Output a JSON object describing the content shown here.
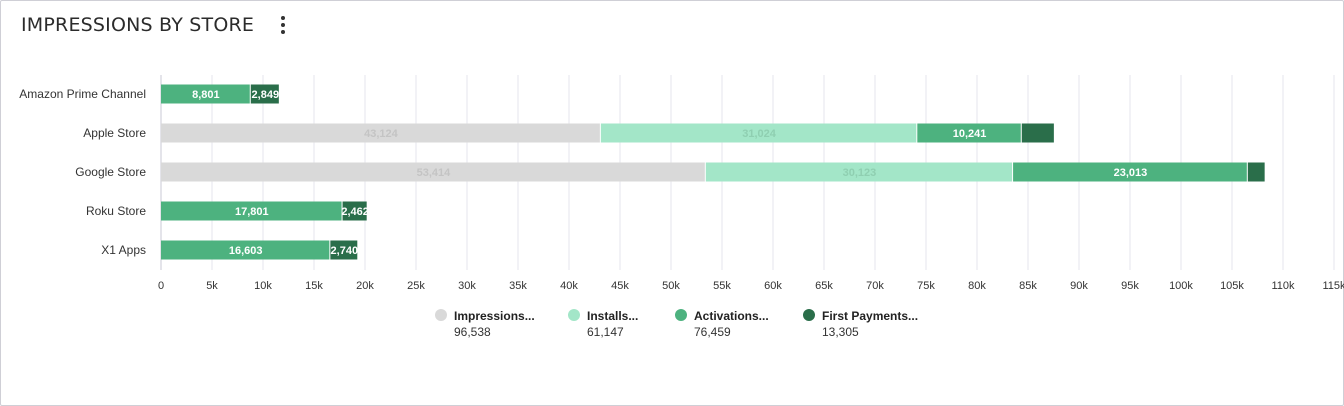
{
  "header": {
    "title": "IMPRESSIONS BY STORE",
    "menu_icon": "kebab-menu-icon"
  },
  "colors": {
    "impressions": "#d9d9d9",
    "installs": "#a3e6c8",
    "activations": "#4db27f",
    "first_payments": "#2a6e4a",
    "grid": "#e6e6ec",
    "axis_text": "#333333"
  },
  "chart_data": {
    "type": "bar",
    "orientation": "horizontal",
    "stacked": true,
    "title": "",
    "categories": [
      "Amazon Prime Channel",
      "Apple Store",
      "Google Store",
      "Roku Store",
      "X1 Apps"
    ],
    "series": [
      {
        "name": "Impressions...",
        "key": "impressions",
        "values": [
          0,
          43124,
          53414,
          0,
          0
        ],
        "labels": [
          "",
          "43,124",
          "53,414",
          "",
          ""
        ]
      },
      {
        "name": "Installs...",
        "key": "installs",
        "values": [
          0,
          31024,
          30123,
          0,
          0
        ],
        "labels": [
          "",
          "31,024",
          "30,123",
          "",
          ""
        ]
      },
      {
        "name": "Activations...",
        "key": "activations",
        "values": [
          8801,
          10241,
          23013,
          17801,
          16603
        ],
        "labels": [
          "8,801",
          "10,241",
          "23,013",
          "17,801",
          "16,603"
        ]
      },
      {
        "name": "First Payments...",
        "key": "first_payments",
        "values": [
          2849,
          3245,
          1749,
          2462,
          2740
        ],
        "labels": [
          "2,849",
          "",
          "",
          "2,462",
          "2,740"
        ]
      }
    ],
    "xlim": [
      0,
      115000
    ],
    "xticks": [
      0,
      5000,
      10000,
      15000,
      20000,
      25000,
      30000,
      35000,
      40000,
      45000,
      50000,
      55000,
      60000,
      65000,
      70000,
      75000,
      80000,
      85000,
      90000,
      95000,
      100000,
      105000,
      110000,
      115000
    ],
    "xtick_labels": [
      "0",
      "5k",
      "10k",
      "15k",
      "20k",
      "25k",
      "30k",
      "35k",
      "40k",
      "45k",
      "50k",
      "55k",
      "60k",
      "65k",
      "70k",
      "75k",
      "80k",
      "85k",
      "90k",
      "95k",
      "100k",
      "105k",
      "110k",
      "115k"
    ],
    "grid": true,
    "legend": {
      "position": "bottom",
      "items": [
        {
          "label": "Impressions...",
          "value": "96,538",
          "key": "impressions"
        },
        {
          "label": "Installs...",
          "value": "61,147",
          "key": "installs"
        },
        {
          "label": "Activations...",
          "value": "76,459",
          "key": "activations"
        },
        {
          "label": "First Payments...",
          "value": "13,305",
          "key": "first_payments"
        }
      ]
    }
  }
}
